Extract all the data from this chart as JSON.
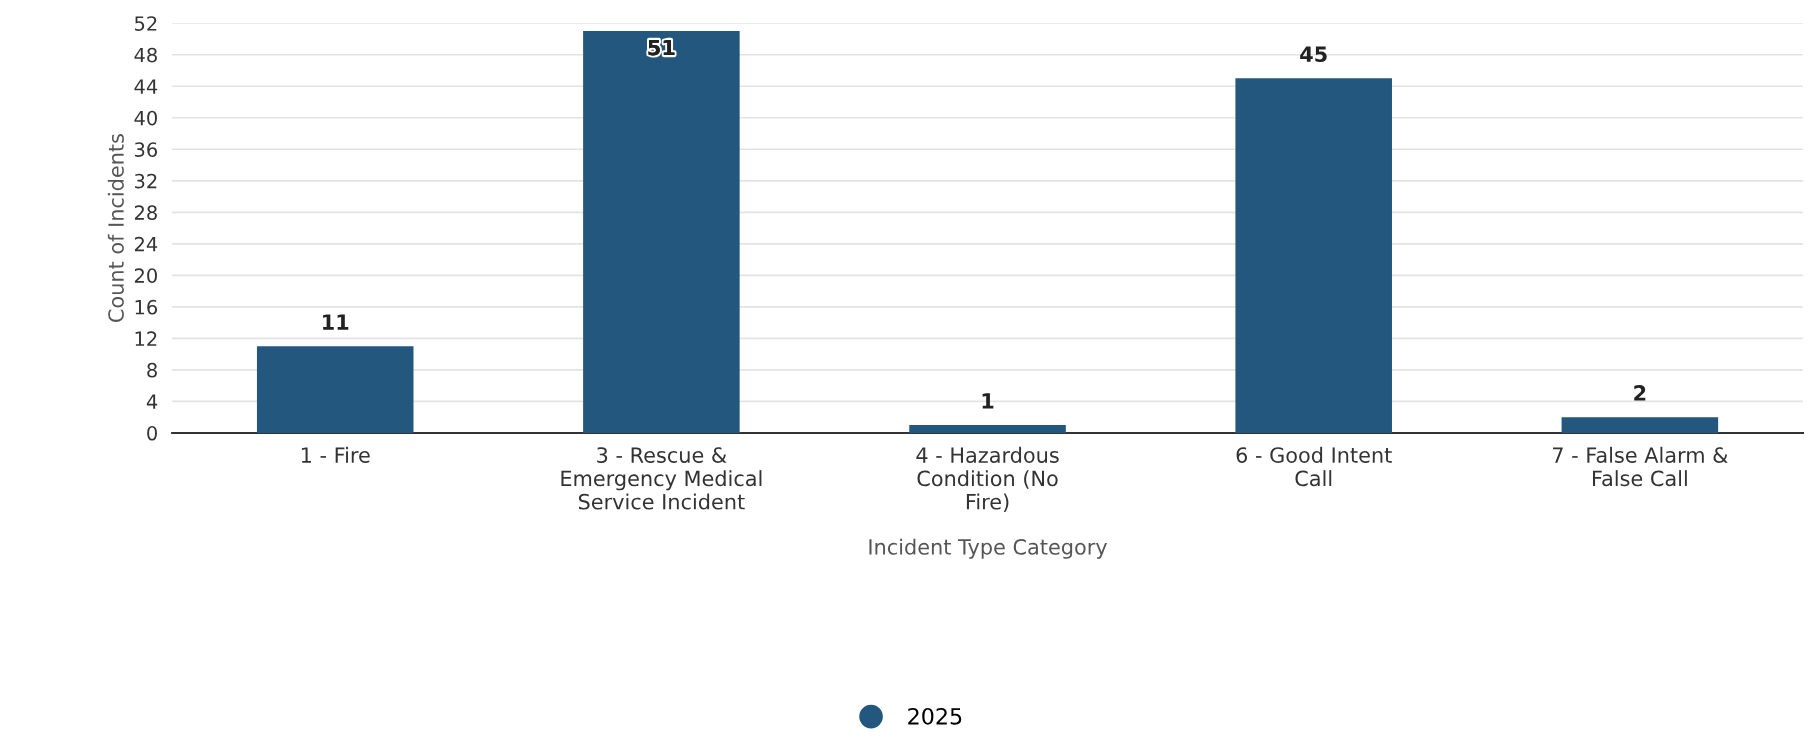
{
  "chart_data": {
    "type": "bar",
    "xlabel": "Incident Type Category",
    "ylabel": "Count of Incidents",
    "categories": [
      "1 - Fire",
      "3 - Rescue & Emergency Medical Service Incident",
      "4 - Hazardous Condition (No Fire)",
      "6 - Good Intent Call",
      "7 - False Alarm & False Call"
    ],
    "series": [
      {
        "name": "2025",
        "color": "#23577e",
        "values": [
          11,
          51,
          1,
          45,
          2
        ]
      }
    ],
    "ylim": [
      0,
      52
    ],
    "yticks": [
      0,
      4,
      8,
      12,
      16,
      20,
      24,
      28,
      32,
      36,
      40,
      44,
      48,
      52
    ],
    "grid": "y",
    "legend": "bottom",
    "data_labels": true,
    "marker": "circle"
  }
}
